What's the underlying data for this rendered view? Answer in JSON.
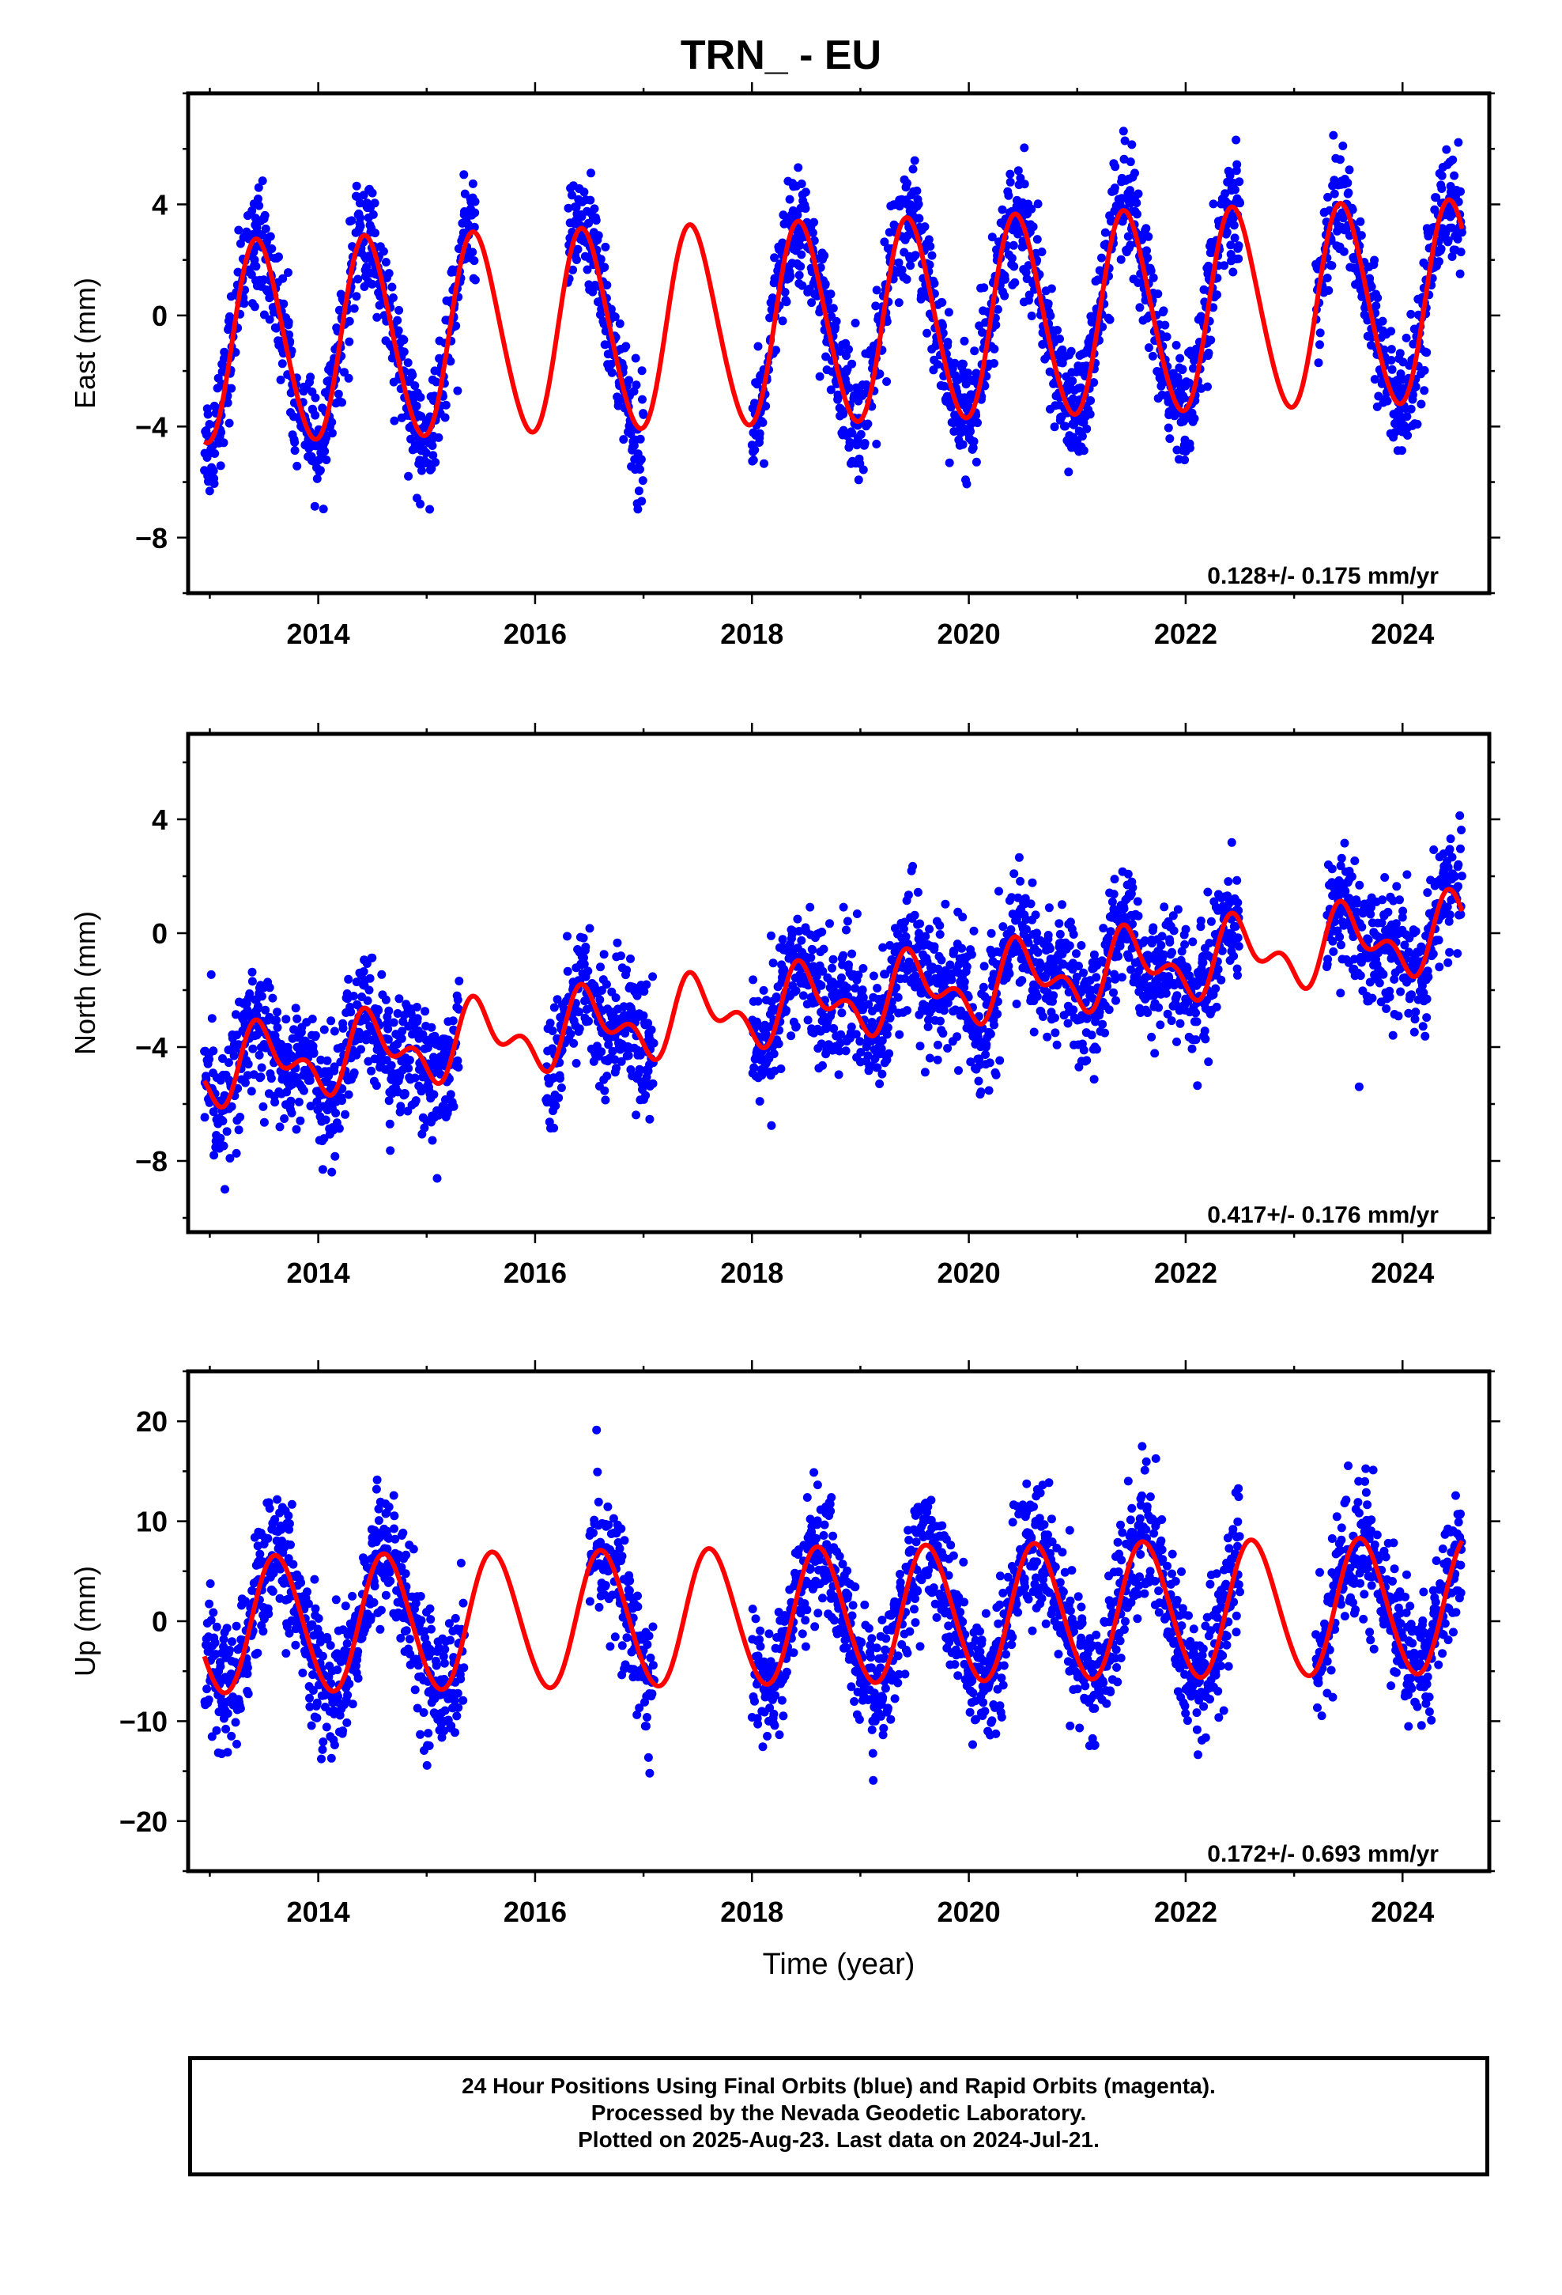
{
  "title": "TRN_ - EU",
  "footer": {
    "lines": [
      "24 Hour Positions Using Final Orbits (blue) and Rapid Orbits (magenta).",
      "Processed by the Nevada Geodetic Laboratory.",
      "Plotted on 2025-Aug-23. Last data on 2024-Jul-21."
    ]
  },
  "colors": {
    "points": "#0000ff",
    "fit": "#ff0000",
    "axes": "#000000"
  },
  "chart_data": [
    {
      "type": "scatter",
      "ylabel": "East (mm)",
      "xlabel": "",
      "xlim": [
        2012.8,
        2024.8
      ],
      "ylim": [
        -10,
        8
      ],
      "xticks": [
        2014,
        2016,
        2018,
        2020,
        2022,
        2024
      ],
      "yticks": [
        -8,
        -4,
        0,
        4
      ],
      "rate_label": "0.128+/- 0.175 mm/yr",
      "fit": {
        "offset": -0.3,
        "rate": 0.128,
        "annual_amp": 3.6,
        "annual_peak": 2013.45,
        "semi_amp": 0.3
      },
      "data_gaps": [
        [
          2015.45,
          2016.3
        ],
        [
          2017.0,
          2018.0
        ],
        [
          2022.5,
          2023.2
        ]
      ],
      "data_range": [
        2012.95,
        2024.55
      ],
      "scatter_sd": 1.0,
      "series": [
        {
          "name": "Final Orbits",
          "kind": "points"
        },
        {
          "name": "Model fit",
          "kind": "line"
        }
      ]
    },
    {
      "type": "scatter",
      "ylabel": "North (mm)",
      "xlabel": "",
      "xlim": [
        2012.8,
        2024.8
      ],
      "ylim": [
        -10.5,
        7
      ],
      "xticks": [
        2014,
        2016,
        2018,
        2020,
        2022,
        2024
      ],
      "yticks": [
        -8,
        -4,
        0,
        4
      ],
      "rate_label": "0.417+/- 0.176 mm/yr",
      "fit": {
        "offset": -2.4,
        "rate": 0.417,
        "annual_amp": 1.0,
        "annual_peak": 2013.5,
        "semi_amp": 0.7
      },
      "data_gaps": [
        [
          2015.3,
          2016.1
        ],
        [
          2017.1,
          2018.0
        ],
        [
          2022.5,
          2023.3
        ]
      ],
      "data_range": [
        2012.95,
        2024.55
      ],
      "scatter_sd": 1.1,
      "series": [
        {
          "name": "Final Orbits",
          "kind": "points"
        },
        {
          "name": "Model fit",
          "kind": "line"
        }
      ]
    },
    {
      "type": "scatter",
      "ylabel": "Up (mm)",
      "xlabel": "Time (year)",
      "xlim": [
        2012.8,
        2024.8
      ],
      "ylim": [
        -25,
        25
      ],
      "xticks": [
        2014,
        2016,
        2018,
        2020,
        2022,
        2024
      ],
      "yticks": [
        -20,
        -10,
        0,
        10,
        20
      ],
      "rate_label": "0.172+/- 0.693 mm/yr",
      "fit": {
        "offset": 0.5,
        "rate": 0.172,
        "annual_amp": 6.8,
        "annual_peak": 2013.62,
        "semi_amp": 0.4
      },
      "data_gaps": [
        [
          2015.35,
          2016.5
        ],
        [
          2017.1,
          2018.0
        ],
        [
          2022.5,
          2023.2
        ]
      ],
      "data_range": [
        2012.95,
        2024.55
      ],
      "scatter_sd": 3.2,
      "series": [
        {
          "name": "Final Orbits",
          "kind": "points"
        },
        {
          "name": "Model fit",
          "kind": "line"
        }
      ]
    }
  ]
}
